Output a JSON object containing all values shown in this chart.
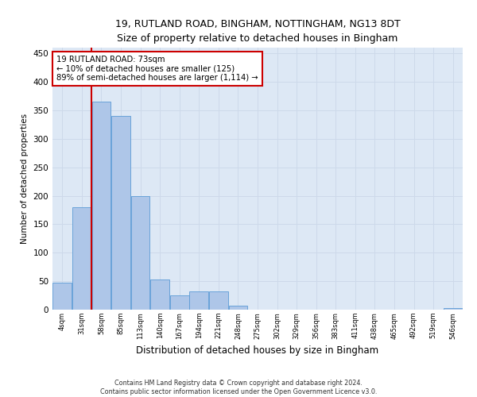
{
  "title_line1": "19, RUTLAND ROAD, BINGHAM, NOTTINGHAM, NG13 8DT",
  "title_line2": "Size of property relative to detached houses in Bingham",
  "xlabel": "Distribution of detached houses by size in Bingham",
  "ylabel": "Number of detached properties",
  "footer_line1": "Contains HM Land Registry data © Crown copyright and database right 2024.",
  "footer_line2": "Contains public sector information licensed under the Open Government Licence v3.0.",
  "bin_labels": [
    "4sqm",
    "31sqm",
    "58sqm",
    "85sqm",
    "113sqm",
    "140sqm",
    "167sqm",
    "194sqm",
    "221sqm",
    "248sqm",
    "275sqm",
    "302sqm",
    "329sqm",
    "356sqm",
    "383sqm",
    "411sqm",
    "438sqm",
    "465sqm",
    "492sqm",
    "519sqm",
    "546sqm"
  ],
  "bar_values": [
    48,
    180,
    365,
    340,
    200,
    53,
    25,
    32,
    32,
    7,
    0,
    0,
    0,
    0,
    0,
    0,
    0,
    0,
    0,
    0,
    3
  ],
  "bar_color": "#aec6e8",
  "bar_edge_color": "#5b9bd5",
  "grid_color": "#cdd9ea",
  "background_color": "#dde8f5",
  "vline_color": "#cc0000",
  "vline_x": 1.5,
  "annotation_text_line1": "19 RUTLAND ROAD: 73sqm",
  "annotation_text_line2": "← 10% of detached houses are smaller (125)",
  "annotation_text_line3": "89% of semi-detached houses are larger (1,114) →",
  "annotation_box_color": "#ffffff",
  "annotation_border_color": "#cc0000",
  "ylim": [
    0,
    460
  ],
  "yticks": [
    0,
    50,
    100,
    150,
    200,
    250,
    300,
    350,
    400,
    450
  ]
}
